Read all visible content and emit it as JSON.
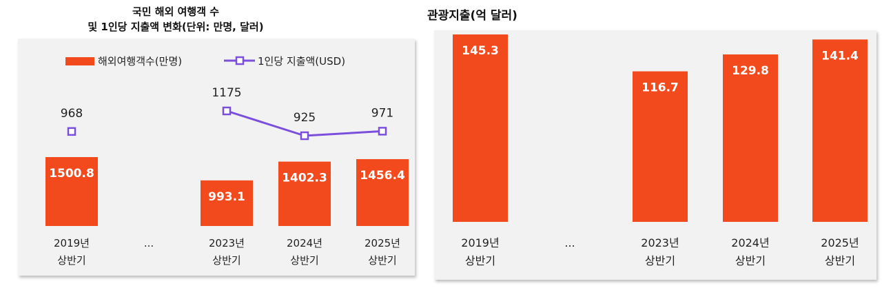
{
  "chart_data": [
    {
      "type": "bar",
      "title_line1": "국민 해외 여행객 수",
      "title_line2": "및 1인당 지출액 변화(단위: 만명, 달러)",
      "categories": [
        {
          "year": "2019년",
          "half": "상반기"
        },
        {
          "year": "...",
          "half": ""
        },
        {
          "year": "2023년",
          "half": "상반기"
        },
        {
          "year": "2024년",
          "half": "상반기"
        },
        {
          "year": "2025년",
          "half": "상반기"
        }
      ],
      "series": [
        {
          "name": "해외여행객수(만명)",
          "type": "bar",
          "values": [
            1500.8,
            null,
            993.1,
            1402.3,
            1456.4
          ],
          "labels": [
            "1500.8",
            "",
            "993.1",
            "1402.3",
            "1456.4"
          ],
          "color": "#f24a1c"
        },
        {
          "name": "1인당 지출액(USD)",
          "type": "line",
          "values": [
            968,
            null,
            1175,
            925,
            971
          ],
          "labels": [
            "968",
            "",
            "1175",
            "925",
            "971"
          ],
          "color": "#7b4fdb"
        }
      ],
      "legend_position": "top",
      "grid": false
    },
    {
      "type": "bar",
      "title": "관광지출(억 달러)",
      "categories": [
        {
          "year": "2019년",
          "half": "상반기"
        },
        {
          "year": "...",
          "half": ""
        },
        {
          "year": "2023년",
          "half": "상반기"
        },
        {
          "year": "2024년",
          "half": "상반기"
        },
        {
          "year": "2025년",
          "half": "상반기"
        }
      ],
      "series": [
        {
          "type": "bar",
          "values": [
            145.3,
            null,
            116.7,
            129.8,
            141.4
          ],
          "labels": [
            "145.3",
            "",
            "116.7",
            "129.8",
            "141.4"
          ],
          "color": "#f24a1c"
        }
      ],
      "grid": false
    }
  ]
}
